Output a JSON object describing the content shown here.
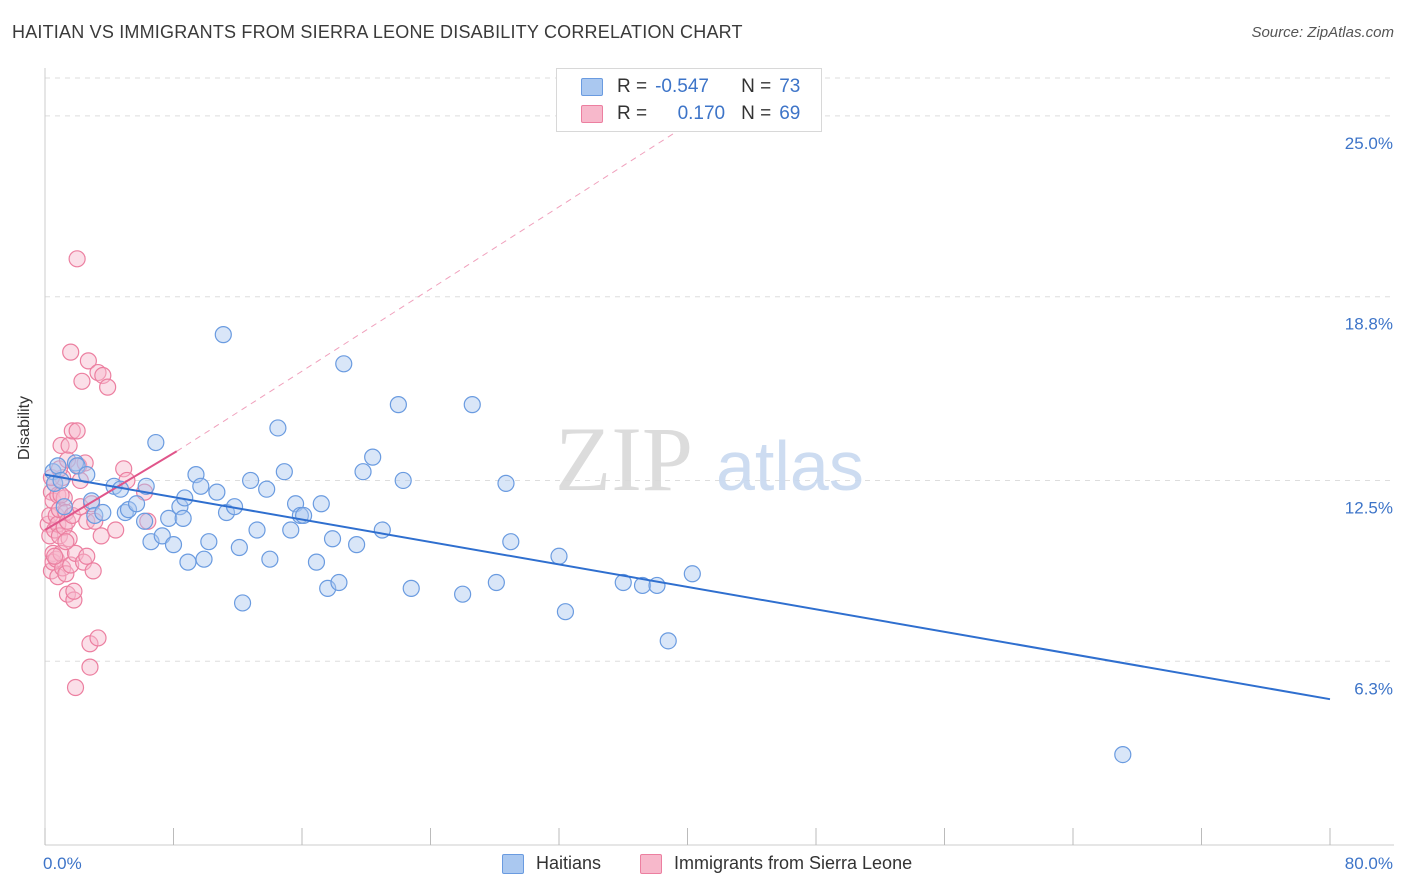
{
  "title": "HAITIAN VS IMMIGRANTS FROM SIERRA LEONE DISABILITY CORRELATION CHART",
  "source": "Source: ZipAtlas.com",
  "watermark": {
    "zip": "ZIP",
    "atlas": "atlas"
  },
  "colors": {
    "blue_fill": "#aac8f0",
    "blue_stroke": "#6a9be0",
    "blue_line": "#2f6fcf",
    "pink_fill": "#f7b8cb",
    "pink_stroke": "#ec7fa0",
    "pink_line": "#e0558a",
    "axis_text": "#3d74c8",
    "grid": "#dddddd"
  },
  "legend": {
    "rows": [
      {
        "r_label": "R =",
        "r_value": "-0.547",
        "n_label": "N =",
        "n_value": "73"
      },
      {
        "r_label": "R =",
        "r_value": "0.170",
        "n_label": "N =",
        "n_value": "69"
      }
    ]
  },
  "bottom_legend": {
    "haitians": "Haitians",
    "sierra_leone": "Immigrants from Sierra Leone"
  },
  "chart_data": {
    "type": "scatter",
    "title": "HAITIAN VS IMMIGRANTS FROM SIERRA LEONE DISABILITY CORRELATION CHART",
    "xlabel": "",
    "ylabel": "Disability",
    "xlim": [
      0,
      80
    ],
    "ylim": [
      0,
      26.3
    ],
    "x_tick_labels": [
      "0.0%",
      "80.0%"
    ],
    "y_ticks": [
      6.3,
      12.5,
      18.8,
      25.0
    ],
    "y_tick_labels": [
      "6.3%",
      "12.5%",
      "18.8%",
      "25.0%"
    ],
    "series": [
      {
        "name": "Haitians",
        "r": -0.547,
        "n": 73,
        "trend": {
          "x": [
            0,
            80
          ],
          "y": [
            12.7,
            5.0
          ]
        },
        "points": [
          [
            0.5,
            12.8
          ],
          [
            0.6,
            12.4
          ],
          [
            0.8,
            13.0
          ],
          [
            1.0,
            12.5
          ],
          [
            1.2,
            11.6
          ],
          [
            1.9,
            13.1
          ],
          [
            2.0,
            13.0
          ],
          [
            2.6,
            12.7
          ],
          [
            2.9,
            11.8
          ],
          [
            3.1,
            11.3
          ],
          [
            3.6,
            11.4
          ],
          [
            4.3,
            12.3
          ],
          [
            4.7,
            12.2
          ],
          [
            5.0,
            11.4
          ],
          [
            5.2,
            11.5
          ],
          [
            5.7,
            11.7
          ],
          [
            6.2,
            11.1
          ],
          [
            6.3,
            12.3
          ],
          [
            6.6,
            10.4
          ],
          [
            6.9,
            13.8
          ],
          [
            7.3,
            10.6
          ],
          [
            7.7,
            11.2
          ],
          [
            8.0,
            10.3
          ],
          [
            8.4,
            11.6
          ],
          [
            8.7,
            11.9
          ],
          [
            8.9,
            9.7
          ],
          [
            9.4,
            12.7
          ],
          [
            9.7,
            12.3
          ],
          [
            9.9,
            9.8
          ],
          [
            10.2,
            10.4
          ],
          [
            10.7,
            12.1
          ],
          [
            11.1,
            17.5
          ],
          [
            11.3,
            11.4
          ],
          [
            11.8,
            11.6
          ],
          [
            12.1,
            10.2
          ],
          [
            12.3,
            8.3
          ],
          [
            12.8,
            12.5
          ],
          [
            13.2,
            10.8
          ],
          [
            13.8,
            12.2
          ],
          [
            14.0,
            9.8
          ],
          [
            14.5,
            14.3
          ],
          [
            14.9,
            12.8
          ],
          [
            15.3,
            10.8
          ],
          [
            15.6,
            11.7
          ],
          [
            15.9,
            11.3
          ],
          [
            16.1,
            11.3
          ],
          [
            16.9,
            9.7
          ],
          [
            17.2,
            11.7
          ],
          [
            17.6,
            8.8
          ],
          [
            17.9,
            10.5
          ],
          [
            18.3,
            9.0
          ],
          [
            18.6,
            16.5
          ],
          [
            19.4,
            10.3
          ],
          [
            19.8,
            12.8
          ],
          [
            20.4,
            13.3
          ],
          [
            21.0,
            10.8
          ],
          [
            22.0,
            15.1
          ],
          [
            22.3,
            12.5
          ],
          [
            22.8,
            8.8
          ],
          [
            26.0,
            8.6
          ],
          [
            26.6,
            15.1
          ],
          [
            28.1,
            9.0
          ],
          [
            28.7,
            12.4
          ],
          [
            29.0,
            10.4
          ],
          [
            32.0,
            9.9
          ],
          [
            32.4,
            8.0
          ],
          [
            36.0,
            9.0
          ],
          [
            37.2,
            8.9
          ],
          [
            38.1,
            8.9
          ],
          [
            38.8,
            7.0
          ],
          [
            40.3,
            9.3
          ],
          [
            67.1,
            3.1
          ],
          [
            8.6,
            11.2
          ]
        ]
      },
      {
        "name": "Immigrants from Sierra Leone",
        "r": 0.17,
        "n": 69,
        "trend": {
          "x": [
            0,
            8.2
          ],
          "y": [
            10.8,
            13.5
          ]
        },
        "trend_extension": {
          "x": [
            8.2,
            40
          ],
          "y": [
            13.5,
            24.7
          ]
        },
        "points": [
          [
            0.2,
            11.0
          ],
          [
            0.3,
            10.6
          ],
          [
            0.3,
            11.3
          ],
          [
            0.4,
            12.1
          ],
          [
            0.4,
            9.4
          ],
          [
            0.5,
            10.0
          ],
          [
            0.5,
            9.7
          ],
          [
            0.5,
            11.8
          ],
          [
            0.6,
            12.4
          ],
          [
            0.6,
            10.8
          ],
          [
            0.7,
            11.3
          ],
          [
            0.7,
            9.8
          ],
          [
            0.8,
            12.0
          ],
          [
            0.8,
            11.0
          ],
          [
            0.8,
            9.2
          ],
          [
            0.9,
            10.6
          ],
          [
            0.9,
            11.5
          ],
          [
            1.0,
            10.0
          ],
          [
            1.0,
            13.7
          ],
          [
            1.1,
            12.6
          ],
          [
            1.1,
            9.5
          ],
          [
            1.2,
            11.9
          ],
          [
            1.2,
            10.9
          ],
          [
            1.3,
            11.4
          ],
          [
            1.3,
            9.3
          ],
          [
            1.4,
            8.6
          ],
          [
            1.4,
            11.1
          ],
          [
            1.5,
            10.5
          ],
          [
            1.5,
            13.7
          ],
          [
            1.6,
            9.6
          ],
          [
            1.6,
            16.9
          ],
          [
            1.7,
            11.3
          ],
          [
            1.7,
            14.2
          ],
          [
            1.8,
            8.4
          ],
          [
            1.8,
            8.7
          ],
          [
            1.9,
            10.0
          ],
          [
            2.0,
            14.2
          ],
          [
            2.0,
            20.1
          ],
          [
            2.1,
            13.0
          ],
          [
            2.2,
            12.5
          ],
          [
            2.2,
            11.6
          ],
          [
            2.3,
            15.9
          ],
          [
            2.4,
            9.7
          ],
          [
            2.5,
            13.1
          ],
          [
            2.6,
            9.9
          ],
          [
            2.6,
            11.1
          ],
          [
            2.7,
            16.6
          ],
          [
            2.8,
            6.1
          ],
          [
            2.8,
            6.9
          ],
          [
            3.0,
            9.4
          ],
          [
            3.1,
            11.1
          ],
          [
            3.3,
            16.2
          ],
          [
            3.3,
            7.1
          ],
          [
            3.5,
            10.6
          ],
          [
            3.6,
            16.1
          ],
          [
            3.9,
            15.7
          ],
          [
            4.4,
            10.8
          ],
          [
            4.9,
            12.9
          ],
          [
            5.1,
            12.5
          ],
          [
            6.2,
            12.1
          ],
          [
            6.4,
            11.1
          ],
          [
            0.4,
            12.6
          ],
          [
            0.9,
            12.9
          ],
          [
            1.0,
            12.0
          ],
          [
            1.9,
            5.4
          ],
          [
            1.3,
            10.4
          ],
          [
            2.9,
            11.7
          ],
          [
            0.6,
            9.9
          ],
          [
            1.4,
            13.2
          ]
        ]
      }
    ]
  }
}
